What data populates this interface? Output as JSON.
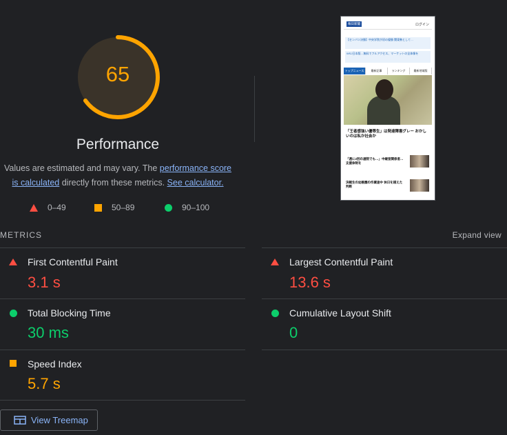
{
  "score": 65,
  "score_text": "65",
  "category_title": "Performance",
  "description": {
    "pre": "Values are estimated and may vary. The ",
    "link1": "performance score is calculated",
    "mid": " directly from these metrics. ",
    "link2": "See calculator."
  },
  "legend": [
    {
      "range": "0–49",
      "icon": "red-triangle-icon",
      "color": "#ff4e42"
    },
    {
      "range": "50–89",
      "icon": "orange-square-icon",
      "color": "#ffa400"
    },
    {
      "range": "90–100",
      "icon": "green-circle-icon",
      "color": "#0cce6b"
    }
  ],
  "metrics_label": "METRICS",
  "expand_view": "Expand view",
  "metrics": [
    {
      "title": "First Contentful Paint",
      "value": "3.1 s",
      "status": "fail"
    },
    {
      "title": "Largest Contentful Paint",
      "value": "13.6 s",
      "status": "fail"
    },
    {
      "title": "Total Blocking Time",
      "value": "30 ms",
      "status": "pass"
    },
    {
      "title": "Cumulative Layout Shift",
      "value": "0",
      "status": "pass"
    },
    {
      "title": "Speed Index",
      "value": "5.7 s",
      "status": "average"
    }
  ],
  "view_treemap": "View Treemap",
  "thumbnail": {
    "logo": "毎日新聞",
    "login": "ログイン",
    "banner1": "【センバツ決勝】中央学院が初の優勝 関東勢として…",
    "banner2": "WSJ日本版…無料でフルアクセス、マーケットの全体像を",
    "tabs": [
      "トップニュース",
      "最新記事",
      "ランキング",
      "最新地域版"
    ],
    "headline": "「王者感強い優等生」は発達障害グレー おかしいのは私か社会か",
    "item1": "「週に2回の通院でも…」中継室関係者…支援体制を",
    "item2": "決戦生の幼稚園の作業途中 休日を越えた判断"
  },
  "colors": {
    "background": "#202124",
    "fail": "#ff4e42",
    "average": "#ffa400",
    "pass": "#0cce6b",
    "link": "#8ab4f8"
  }
}
